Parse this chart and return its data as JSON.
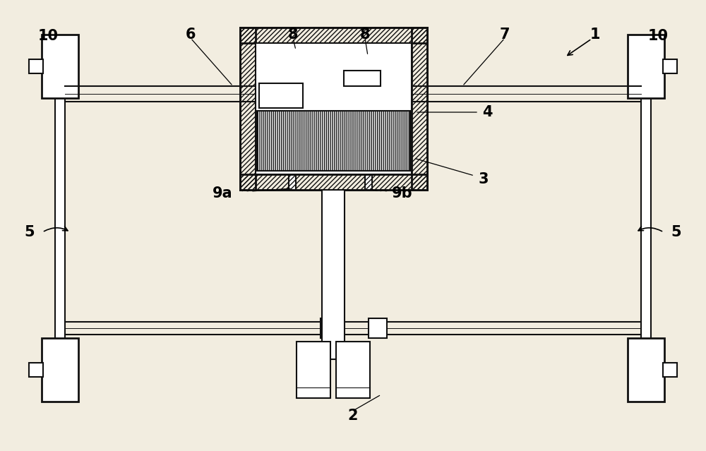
{
  "bg_color": "#f2ede0",
  "line_color": "#111111",
  "fig_w": 10.0,
  "fig_h": 6.39,
  "dpi": 100,
  "labels": {
    "10_tl": [
      0.068,
      0.935,
      "10"
    ],
    "10_tr": [
      0.932,
      0.935,
      "10"
    ],
    "6": [
      0.275,
      0.935,
      "6"
    ],
    "8a": [
      0.415,
      0.935,
      "8"
    ],
    "8b": [
      0.515,
      0.935,
      "8"
    ],
    "7": [
      0.72,
      0.935,
      "7"
    ],
    "1": [
      0.845,
      0.935,
      "1"
    ],
    "9a": [
      0.325,
      0.565,
      "9a"
    ],
    "9b": [
      0.555,
      0.565,
      "9b"
    ],
    "4": [
      0.69,
      0.485,
      "4"
    ],
    "3": [
      0.685,
      0.385,
      "3"
    ],
    "5l": [
      0.055,
      0.48,
      "5"
    ],
    "5r": [
      0.945,
      0.48,
      "5"
    ],
    "2": [
      0.5,
      0.07,
      "2"
    ]
  }
}
